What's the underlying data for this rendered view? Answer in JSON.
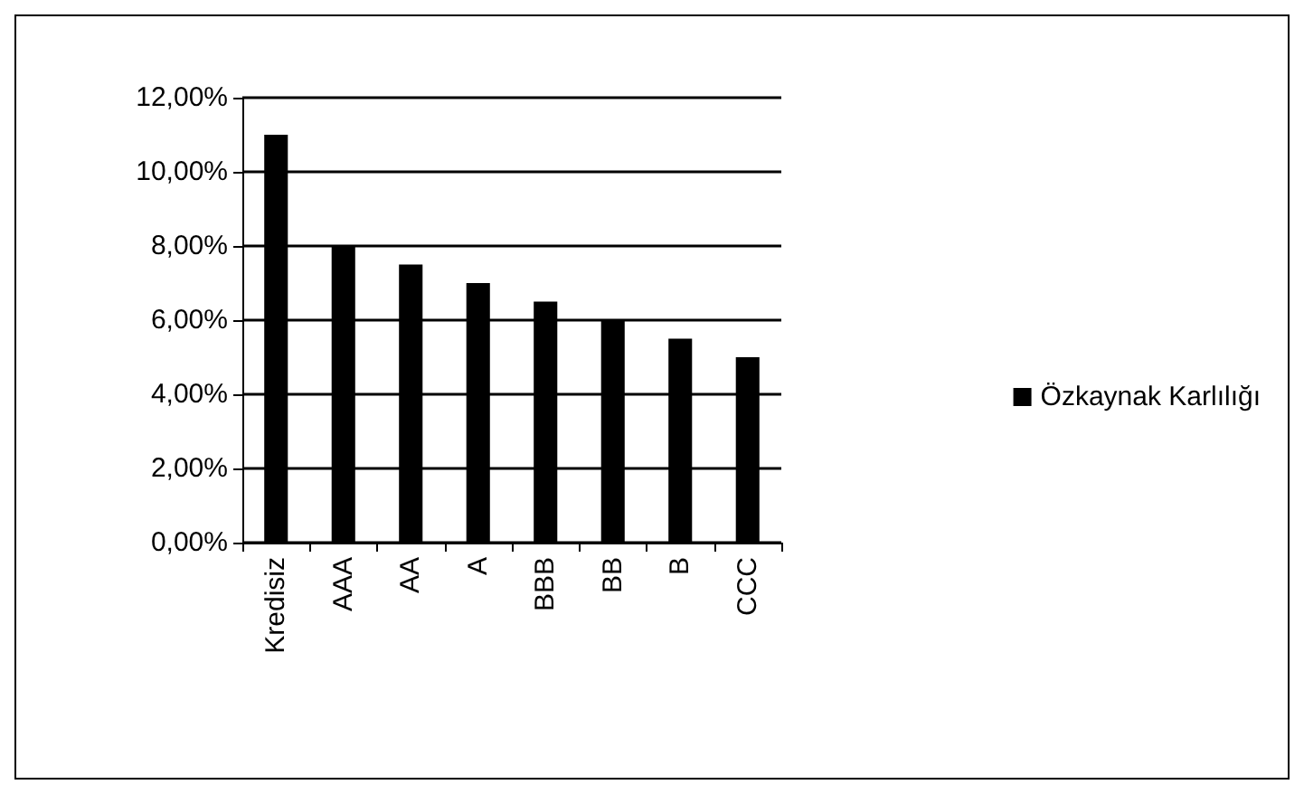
{
  "chart_data": {
    "type": "bar",
    "categories": [
      "Kredisiz",
      "AAA",
      "AA",
      "A",
      "BBB",
      "BB",
      "B",
      "CCC"
    ],
    "series": [
      {
        "name": "Özkaynak Karlılığı",
        "color": "#000000",
        "values": [
          11,
          8,
          7.5,
          7,
          6.5,
          6,
          5.5,
          5
        ]
      }
    ],
    "ylim": [
      0,
      12
    ],
    "yticks": [
      {
        "value": 0,
        "label": "0,00%"
      },
      {
        "value": 2,
        "label": "2,00%"
      },
      {
        "value": 4,
        "label": "4,00%"
      },
      {
        "value": 6,
        "label": "6,00%"
      },
      {
        "value": 8,
        "label": "8,00%"
      },
      {
        "value": 10,
        "label": "10,00%"
      },
      {
        "value": 12,
        "label": "12,00%"
      }
    ],
    "grid": "y",
    "legend": "right"
  }
}
